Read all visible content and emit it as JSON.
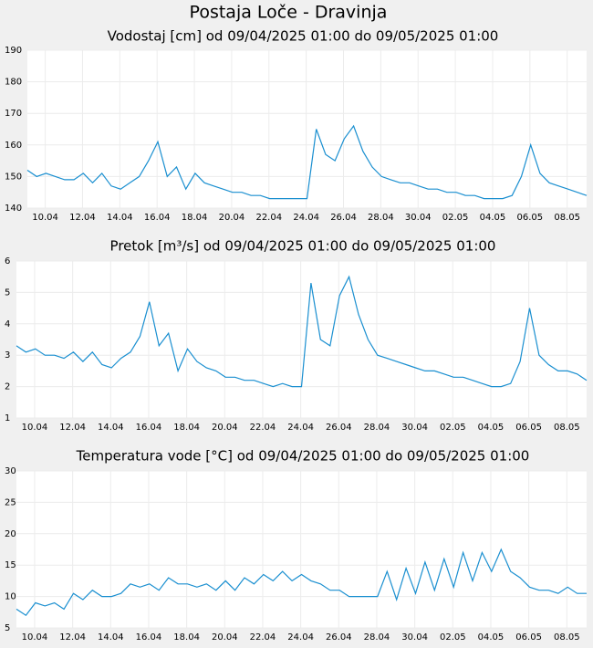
{
  "title": "Postaja Loče - Dravinja",
  "chart_data": [
    {
      "type": "line",
      "title": "Vodostaj [cm] od 09/04/2025 01:00 do 09/05/2025 01:00",
      "color": "#1a8fd0",
      "grid": true,
      "xlim": [
        "2025-04-09 01:00",
        "2025-05-09 01:00"
      ],
      "ylim": [
        140,
        190
      ],
      "yticks": [
        140,
        150,
        160,
        170,
        180,
        190
      ],
      "xticks": [
        {
          "value": "2025-04-10 00:00",
          "label": "10.04"
        },
        {
          "value": "2025-04-12 00:00",
          "label": "12.04"
        },
        {
          "value": "2025-04-14 00:00",
          "label": "14.04"
        },
        {
          "value": "2025-04-16 00:00",
          "label": "16.04"
        },
        {
          "value": "2025-04-18 00:00",
          "label": "18.04"
        },
        {
          "value": "2025-04-20 00:00",
          "label": "20.04"
        },
        {
          "value": "2025-04-22 00:00",
          "label": "22.04"
        },
        {
          "value": "2025-04-24 00:00",
          "label": "24.04"
        },
        {
          "value": "2025-04-26 00:00",
          "label": "26.04"
        },
        {
          "value": "2025-04-28 00:00",
          "label": "28.04"
        },
        {
          "value": "2025-04-30 00:00",
          "label": "30.04"
        },
        {
          "value": "2025-05-02 00:00",
          "label": "02.05"
        },
        {
          "value": "2025-05-04 00:00",
          "label": "04.05"
        },
        {
          "value": "2025-05-06 00:00",
          "label": "06.05"
        },
        {
          "value": "2025-05-08 00:00",
          "label": "08.05"
        }
      ],
      "x": [
        "2025-04-09 01:00",
        "2025-04-09 13:00",
        "2025-04-10 01:00",
        "2025-04-10 13:00",
        "2025-04-11 01:00",
        "2025-04-11 13:00",
        "2025-04-12 01:00",
        "2025-04-12 13:00",
        "2025-04-13 01:00",
        "2025-04-13 13:00",
        "2025-04-14 01:00",
        "2025-04-14 13:00",
        "2025-04-15 01:00",
        "2025-04-15 13:00",
        "2025-04-16 01:00",
        "2025-04-16 13:00",
        "2025-04-17 01:00",
        "2025-04-17 13:00",
        "2025-04-18 01:00",
        "2025-04-18 13:00",
        "2025-04-19 01:00",
        "2025-04-19 13:00",
        "2025-04-20 01:00",
        "2025-04-20 13:00",
        "2025-04-21 01:00",
        "2025-04-21 13:00",
        "2025-04-22 01:00",
        "2025-04-22 13:00",
        "2025-04-23 01:00",
        "2025-04-23 13:00",
        "2025-04-24 01:00",
        "2025-04-24 13:00",
        "2025-04-25 01:00",
        "2025-04-25 13:00",
        "2025-04-26 01:00",
        "2025-04-26 13:00",
        "2025-04-27 01:00",
        "2025-04-27 13:00",
        "2025-04-28 01:00",
        "2025-04-28 13:00",
        "2025-04-29 01:00",
        "2025-04-29 13:00",
        "2025-04-30 01:00",
        "2025-04-30 13:00",
        "2025-05-01 01:00",
        "2025-05-01 13:00",
        "2025-05-02 01:00",
        "2025-05-02 13:00",
        "2025-05-03 01:00",
        "2025-05-03 13:00",
        "2025-05-04 01:00",
        "2025-05-04 13:00",
        "2025-05-05 01:00",
        "2025-05-05 13:00",
        "2025-05-06 01:00",
        "2025-05-06 13:00",
        "2025-05-07 01:00",
        "2025-05-07 13:00",
        "2025-05-08 01:00",
        "2025-05-08 13:00",
        "2025-05-09 01:00"
      ],
      "values": [
        152,
        150,
        151,
        150,
        149,
        149,
        151,
        148,
        151,
        147,
        146,
        148,
        150,
        155,
        161,
        150,
        153,
        146,
        151,
        148,
        147,
        146,
        145,
        145,
        144,
        144,
        143,
        143,
        143,
        143,
        143,
        165,
        157,
        155,
        162,
        166,
        158,
        153,
        150,
        149,
        148,
        148,
        147,
        146,
        146,
        145,
        145,
        144,
        144,
        143,
        143,
        143,
        144,
        150,
        160,
        151,
        148,
        147,
        146,
        145,
        144
      ]
    },
    {
      "type": "line",
      "title": "Pretok [m³/s] od 09/04/2025 01:00 do 09/05/2025 01:00",
      "color": "#1a8fd0",
      "grid": true,
      "xlim": [
        "2025-04-09 01:00",
        "2025-05-09 01:00"
      ],
      "ylim": [
        1,
        6
      ],
      "yticks": [
        1,
        2,
        3,
        4,
        5,
        6
      ],
      "xticks": [
        {
          "value": "2025-04-10 00:00",
          "label": "10.04"
        },
        {
          "value": "2025-04-12 00:00",
          "label": "12.04"
        },
        {
          "value": "2025-04-14 00:00",
          "label": "14.04"
        },
        {
          "value": "2025-04-16 00:00",
          "label": "16.04"
        },
        {
          "value": "2025-04-18 00:00",
          "label": "18.04"
        },
        {
          "value": "2025-04-20 00:00",
          "label": "20.04"
        },
        {
          "value": "2025-04-22 00:00",
          "label": "22.04"
        },
        {
          "value": "2025-04-24 00:00",
          "label": "24.04"
        },
        {
          "value": "2025-04-26 00:00",
          "label": "26.04"
        },
        {
          "value": "2025-04-28 00:00",
          "label": "28.04"
        },
        {
          "value": "2025-04-30 00:00",
          "label": "30.04"
        },
        {
          "value": "2025-05-02 00:00",
          "label": "02.05"
        },
        {
          "value": "2025-05-04 00:00",
          "label": "04.05"
        },
        {
          "value": "2025-05-06 00:00",
          "label": "06.05"
        },
        {
          "value": "2025-05-08 00:00",
          "label": "08.05"
        }
      ],
      "x": [
        "2025-04-09 01:00",
        "2025-04-09 13:00",
        "2025-04-10 01:00",
        "2025-04-10 13:00",
        "2025-04-11 01:00",
        "2025-04-11 13:00",
        "2025-04-12 01:00",
        "2025-04-12 13:00",
        "2025-04-13 01:00",
        "2025-04-13 13:00",
        "2025-04-14 01:00",
        "2025-04-14 13:00",
        "2025-04-15 01:00",
        "2025-04-15 13:00",
        "2025-04-16 01:00",
        "2025-04-16 13:00",
        "2025-04-17 01:00",
        "2025-04-17 13:00",
        "2025-04-18 01:00",
        "2025-04-18 13:00",
        "2025-04-19 01:00",
        "2025-04-19 13:00",
        "2025-04-20 01:00",
        "2025-04-20 13:00",
        "2025-04-21 01:00",
        "2025-04-21 13:00",
        "2025-04-22 01:00",
        "2025-04-22 13:00",
        "2025-04-23 01:00",
        "2025-04-23 13:00",
        "2025-04-24 01:00",
        "2025-04-24 13:00",
        "2025-04-25 01:00",
        "2025-04-25 13:00",
        "2025-04-26 01:00",
        "2025-04-26 13:00",
        "2025-04-27 01:00",
        "2025-04-27 13:00",
        "2025-04-28 01:00",
        "2025-04-28 13:00",
        "2025-04-29 01:00",
        "2025-04-29 13:00",
        "2025-04-30 01:00",
        "2025-04-30 13:00",
        "2025-05-01 01:00",
        "2025-05-01 13:00",
        "2025-05-02 01:00",
        "2025-05-02 13:00",
        "2025-05-03 01:00",
        "2025-05-03 13:00",
        "2025-05-04 01:00",
        "2025-05-04 13:00",
        "2025-05-05 01:00",
        "2025-05-05 13:00",
        "2025-05-06 01:00",
        "2025-05-06 13:00",
        "2025-05-07 01:00",
        "2025-05-07 13:00",
        "2025-05-08 01:00",
        "2025-05-08 13:00",
        "2025-05-09 01:00"
      ],
      "values": [
        3.3,
        3.1,
        3.2,
        3.0,
        3.0,
        2.9,
        3.1,
        2.8,
        3.1,
        2.7,
        2.6,
        2.9,
        3.1,
        3.6,
        4.7,
        3.3,
        3.7,
        2.5,
        3.2,
        2.8,
        2.6,
        2.5,
        2.3,
        2.3,
        2.2,
        2.2,
        2.1,
        2.0,
        2.1,
        2.0,
        2.0,
        5.3,
        3.5,
        3.3,
        4.9,
        5.5,
        4.3,
        3.5,
        3.0,
        2.9,
        2.8,
        2.7,
        2.6,
        2.5,
        2.5,
        2.4,
        2.3,
        2.3,
        2.2,
        2.1,
        2.0,
        2.0,
        2.1,
        2.8,
        4.5,
        3.0,
        2.7,
        2.5,
        2.5,
        2.4,
        2.2
      ]
    },
    {
      "type": "line",
      "title": "Temperatura vode [°C] od 09/04/2025 01:00 do 09/05/2025 01:00",
      "color": "#1a8fd0",
      "grid": true,
      "xlim": [
        "2025-04-09 01:00",
        "2025-05-09 01:00"
      ],
      "ylim": [
        5,
        30
      ],
      "yticks": [
        5,
        10,
        15,
        20,
        25,
        30
      ],
      "xticks": [
        {
          "value": "2025-04-10 00:00",
          "label": "10.04"
        },
        {
          "value": "2025-04-12 00:00",
          "label": "12.04"
        },
        {
          "value": "2025-04-14 00:00",
          "label": "14.04"
        },
        {
          "value": "2025-04-16 00:00",
          "label": "16.04"
        },
        {
          "value": "2025-04-18 00:00",
          "label": "18.04"
        },
        {
          "value": "2025-04-20 00:00",
          "label": "20.04"
        },
        {
          "value": "2025-04-22 00:00",
          "label": "22.04"
        },
        {
          "value": "2025-04-24 00:00",
          "label": "24.04"
        },
        {
          "value": "2025-04-26 00:00",
          "label": "26.04"
        },
        {
          "value": "2025-04-28 00:00",
          "label": "28.04"
        },
        {
          "value": "2025-04-30 00:00",
          "label": "30.04"
        },
        {
          "value": "2025-05-02 00:00",
          "label": "02.05"
        },
        {
          "value": "2025-05-04 00:00",
          "label": "04.05"
        },
        {
          "value": "2025-05-06 00:00",
          "label": "06.05"
        },
        {
          "value": "2025-05-08 00:00",
          "label": "08.05"
        }
      ],
      "x": [
        "2025-04-09 01:00",
        "2025-04-09 13:00",
        "2025-04-10 01:00",
        "2025-04-10 13:00",
        "2025-04-11 01:00",
        "2025-04-11 13:00",
        "2025-04-12 01:00",
        "2025-04-12 13:00",
        "2025-04-13 01:00",
        "2025-04-13 13:00",
        "2025-04-14 01:00",
        "2025-04-14 13:00",
        "2025-04-15 01:00",
        "2025-04-15 13:00",
        "2025-04-16 01:00",
        "2025-04-16 13:00",
        "2025-04-17 01:00",
        "2025-04-17 13:00",
        "2025-04-18 01:00",
        "2025-04-18 13:00",
        "2025-04-19 01:00",
        "2025-04-19 13:00",
        "2025-04-20 01:00",
        "2025-04-20 13:00",
        "2025-04-21 01:00",
        "2025-04-21 13:00",
        "2025-04-22 01:00",
        "2025-04-22 13:00",
        "2025-04-23 01:00",
        "2025-04-23 13:00",
        "2025-04-24 01:00",
        "2025-04-24 13:00",
        "2025-04-25 01:00",
        "2025-04-25 13:00",
        "2025-04-26 01:00",
        "2025-04-26 13:00",
        "2025-04-27 01:00",
        "2025-04-27 13:00",
        "2025-04-28 01:00",
        "2025-04-28 13:00",
        "2025-04-29 01:00",
        "2025-04-29 13:00",
        "2025-04-30 01:00",
        "2025-04-30 13:00",
        "2025-05-01 01:00",
        "2025-05-01 13:00",
        "2025-05-02 01:00",
        "2025-05-02 13:00",
        "2025-05-03 01:00",
        "2025-05-03 13:00",
        "2025-05-04 01:00",
        "2025-05-04 13:00",
        "2025-05-05 01:00",
        "2025-05-05 13:00",
        "2025-05-06 01:00",
        "2025-05-06 13:00",
        "2025-05-07 01:00",
        "2025-05-07 13:00",
        "2025-05-08 01:00",
        "2025-05-08 13:00",
        "2025-05-09 01:00"
      ],
      "values": [
        8,
        7,
        9,
        8.5,
        9,
        8,
        10.5,
        9.5,
        11,
        10,
        10,
        10.5,
        12,
        11.5,
        12,
        11,
        13,
        12,
        12,
        11.5,
        12,
        11,
        12.5,
        11,
        13,
        12,
        13.5,
        12.5,
        14,
        12.5,
        13.5,
        12.5,
        12,
        11,
        11,
        10,
        10,
        10,
        10,
        14,
        9.5,
        14.5,
        10.5,
        15.5,
        11,
        16,
        11.5,
        17,
        12.5,
        17,
        14,
        17.5,
        14,
        13,
        11.5,
        11,
        11,
        10.5,
        11.5,
        10.5,
        10.5
      ]
    }
  ]
}
